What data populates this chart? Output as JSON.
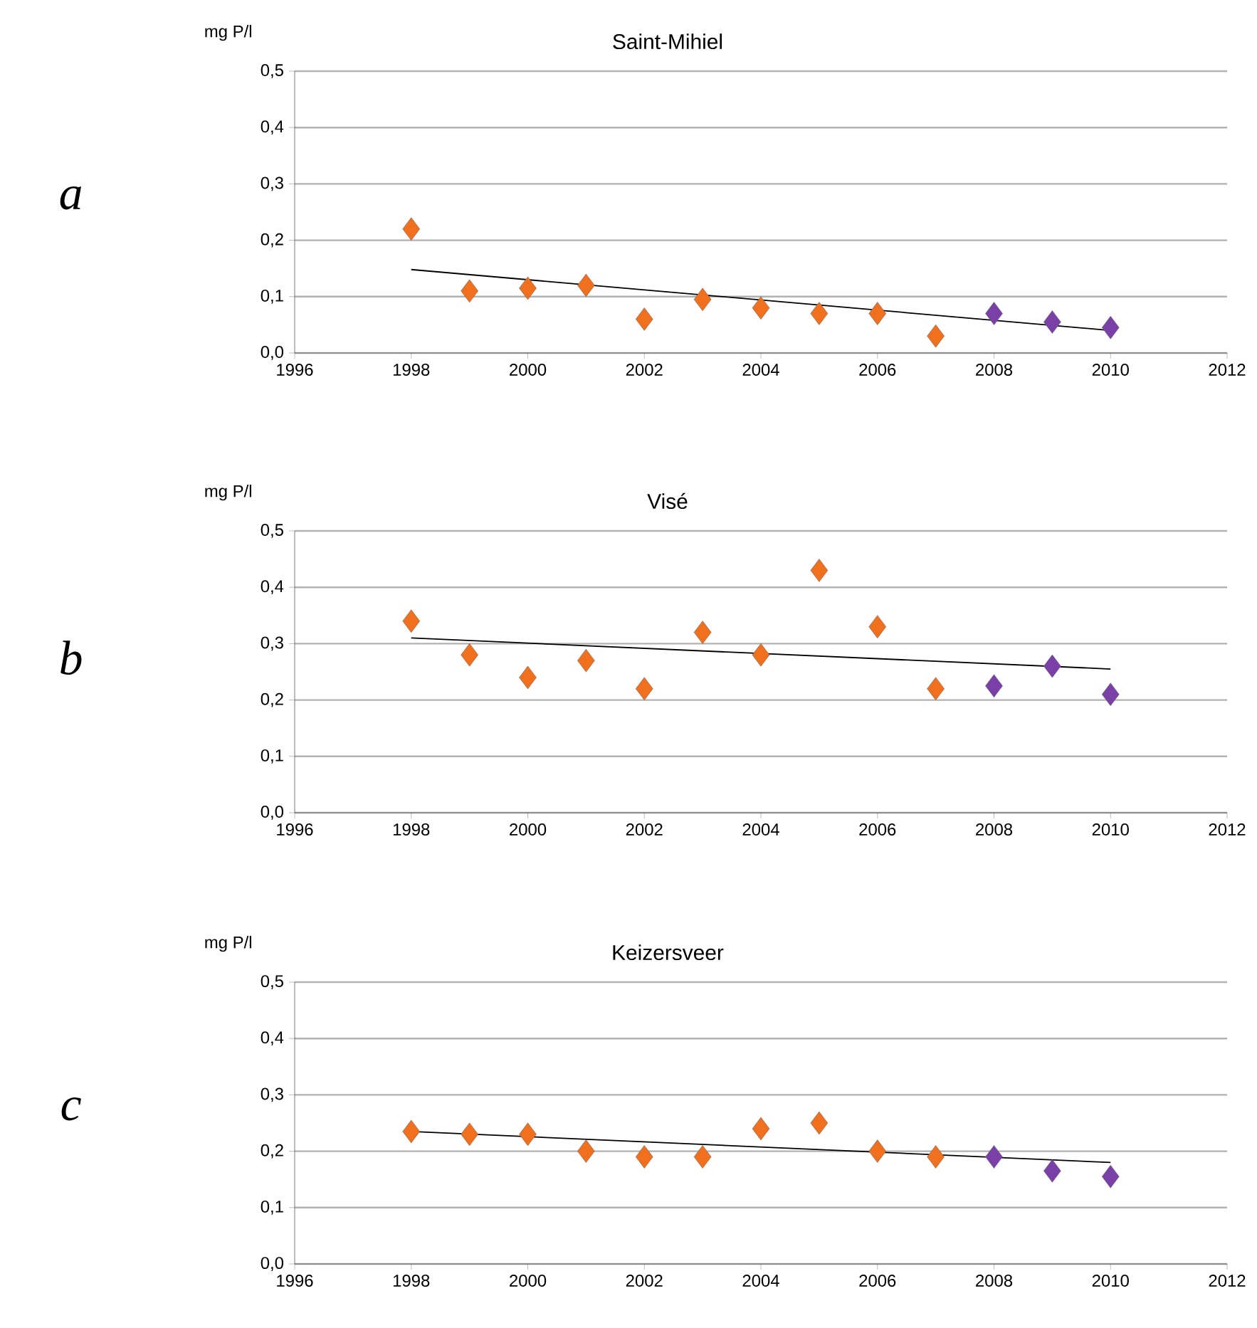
{
  "chart_data": [
    {
      "type": "scatter",
      "title": "Saint-Mihiel",
      "ylabel": "mg P/l",
      "annotations": [
        "a"
      ],
      "marker": "diamond",
      "grid": "y",
      "xlim": [
        1996,
        2012
      ],
      "xticks": [
        1996,
        1998,
        2000,
        2002,
        2004,
        2006,
        2008,
        2010,
        2012
      ],
      "ylim": [
        0,
        0.5
      ],
      "yticks": [
        {
          "value": 0,
          "label": "0,0"
        },
        {
          "value": 0.1,
          "label": "0,1"
        },
        {
          "value": 0.2,
          "label": "0,2"
        },
        {
          "value": 0.3,
          "label": "0,3"
        },
        {
          "value": 0.4,
          "label": "0,4"
        },
        {
          "value": 0.5,
          "label": "0,5"
        }
      ],
      "series": [
        {
          "color": "#f0701e",
          "x": [
            1998,
            1999,
            2000,
            2001,
            2002,
            2003,
            2004,
            2005,
            2006,
            2007
          ],
          "values": [
            0.22,
            0.11,
            0.115,
            0.12,
            0.06,
            0.095,
            0.08,
            0.07,
            0.07,
            0.03
          ]
        },
        {
          "color": "#7a40a8",
          "x": [
            2008,
            2009,
            2010
          ],
          "values": [
            0.07,
            0.055,
            0.045
          ]
        },
        {
          "type": "line",
          "marker": "none",
          "line_style": "solid",
          "color": "#000000",
          "x": [
            1998,
            2010
          ],
          "values": [
            0.148,
            0.04
          ]
        }
      ]
    },
    {
      "type": "scatter",
      "title": "Visé",
      "ylabel": "mg P/l",
      "annotations": [
        "b"
      ],
      "marker": "diamond",
      "grid": "y",
      "xlim": [
        1996,
        2012
      ],
      "xticks": [
        1996,
        1998,
        2000,
        2002,
        2004,
        2006,
        2008,
        2010,
        2012
      ],
      "ylim": [
        0,
        0.5
      ],
      "yticks": [
        {
          "value": 0,
          "label": "0,0"
        },
        {
          "value": 0.1,
          "label": "0,1"
        },
        {
          "value": 0.2,
          "label": "0,2"
        },
        {
          "value": 0.3,
          "label": "0,3"
        },
        {
          "value": 0.4,
          "label": "0,4"
        },
        {
          "value": 0.5,
          "label": "0,5"
        }
      ],
      "series": [
        {
          "color": "#f0701e",
          "x": [
            1998,
            1999,
            2000,
            2001,
            2002,
            2003,
            2004,
            2005,
            2006,
            2007
          ],
          "values": [
            0.34,
            0.28,
            0.24,
            0.27,
            0.22,
            0.32,
            0.28,
            0.43,
            0.33,
            0.22
          ]
        },
        {
          "color": "#7a40a8",
          "x": [
            2008,
            2009,
            2010
          ],
          "values": [
            0.225,
            0.26,
            0.21
          ]
        },
        {
          "type": "line",
          "marker": "none",
          "line_style": "solid",
          "color": "#000000",
          "x": [
            1998,
            2010
          ],
          "values": [
            0.31,
            0.255
          ]
        }
      ]
    },
    {
      "type": "scatter",
      "title": "Keizersveer",
      "ylabel": "mg P/l",
      "annotations": [
        "c"
      ],
      "marker": "diamond",
      "grid": "y",
      "xlim": [
        1996,
        2012
      ],
      "xticks": [
        1996,
        1998,
        2000,
        2002,
        2004,
        2006,
        2008,
        2010,
        2012
      ],
      "ylim": [
        0,
        0.5
      ],
      "yticks": [
        {
          "value": 0,
          "label": "0,0"
        },
        {
          "value": 0.1,
          "label": "0,1"
        },
        {
          "value": 0.2,
          "label": "0,2"
        },
        {
          "value": 0.3,
          "label": "0,3"
        },
        {
          "value": 0.4,
          "label": "0,4"
        },
        {
          "value": 0.5,
          "label": "0,5"
        }
      ],
      "series": [
        {
          "color": "#f0701e",
          "x": [
            1998,
            1999,
            2000,
            2001,
            2002,
            2003,
            2004,
            2005,
            2006,
            2007
          ],
          "values": [
            0.235,
            0.23,
            0.23,
            0.2,
            0.19,
            0.19,
            0.24,
            0.25,
            0.2,
            0.19
          ]
        },
        {
          "color": "#7a40a8",
          "x": [
            2008,
            2009,
            2010
          ],
          "values": [
            0.19,
            0.165,
            0.155
          ]
        },
        {
          "type": "line",
          "marker": "none",
          "line_style": "solid",
          "color": "#000000",
          "x": [
            1998,
            2010
          ],
          "values": [
            0.235,
            0.18
          ]
        }
      ]
    }
  ]
}
